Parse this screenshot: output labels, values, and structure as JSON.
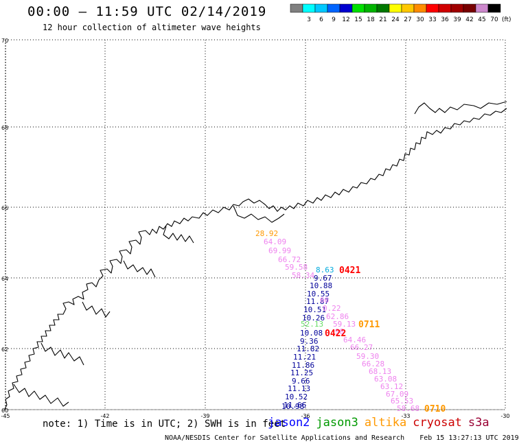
{
  "header": {
    "title": "00:00 – 11:59 UTC 02/14/2019",
    "subtitle": "12 hour collection of altimeter wave heights"
  },
  "legend": {
    "unit": "(ft)",
    "bins": [
      {
        "label": "",
        "color": "#808080"
      },
      {
        "label": "3",
        "color": "#00ffff"
      },
      {
        "label": "6",
        "color": "#00c8ff"
      },
      {
        "label": "9",
        "color": "#0064ff"
      },
      {
        "label": "12",
        "color": "#0000d0"
      },
      {
        "label": "15",
        "color": "#00e000"
      },
      {
        "label": "18",
        "color": "#00b400"
      },
      {
        "label": "21",
        "color": "#007800"
      },
      {
        "label": "24",
        "color": "#ffff00"
      },
      {
        "label": "27",
        "color": "#ffc800"
      },
      {
        "label": "30",
        "color": "#ff8c00"
      },
      {
        "label": "33",
        "color": "#ff0000"
      },
      {
        "label": "36",
        "color": "#d00000"
      },
      {
        "label": "39",
        "color": "#a00000"
      },
      {
        "label": "42",
        "color": "#780000"
      },
      {
        "label": "45",
        "color": "#cc88cc"
      },
      {
        "label": "70",
        "color": "#000000"
      }
    ]
  },
  "map": {
    "lat_ticks": [
      "70",
      "68",
      "66",
      "64",
      "62",
      "60"
    ],
    "lon_ticks": [
      "-45",
      "-42",
      "-39",
      "-36",
      "-33",
      "-30"
    ],
    "track_times": [
      {
        "text": "0421",
        "color": "#ff0000"
      },
      {
        "text": "0422",
        "color": "#ff0000"
      },
      {
        "text": "0711",
        "color": "#ff9900"
      },
      {
        "text": "0710",
        "color": "#ff9900"
      }
    ],
    "obs": [
      {
        "text": "28.92",
        "color": "#ff9900"
      },
      {
        "text": "64.09",
        "color": "#ee82ee"
      },
      {
        "text": "69.99",
        "color": "#ee82ee"
      },
      {
        "text": "66.72",
        "color": "#ee82ee"
      },
      {
        "text": "59.58",
        "color": "#ee82ee"
      },
      {
        "text": "58.34",
        "color": "#ee82ee"
      },
      {
        "text": "8.63",
        "color": "#00aadd"
      },
      {
        "text": "9.67",
        "color": "#000099"
      },
      {
        "text": "10.88",
        "color": "#000099"
      },
      {
        "text": "10.55",
        "color": "#000099"
      },
      {
        "text": "11.87",
        "color": "#000099"
      },
      {
        "text": "10.51",
        "color": "#000099"
      },
      {
        "text": "10.26",
        "color": "#000099"
      },
      {
        "text": "52.13",
        "color": "#66dd66"
      },
      {
        "text": "10.08",
        "color": "#000099"
      },
      {
        "text": "9.36",
        "color": "#000099"
      },
      {
        "text": "11.82",
        "color": "#000099"
      },
      {
        "text": "11.21",
        "color": "#000099"
      },
      {
        "text": "11.86",
        "color": "#000099"
      },
      {
        "text": "11.25",
        "color": "#000099"
      },
      {
        "text": "9.66",
        "color": "#000099"
      },
      {
        "text": "11.13",
        "color": "#000099"
      },
      {
        "text": "10.52",
        "color": "#000099"
      },
      {
        "text": "11.66",
        "color": "#000099"
      },
      {
        "text": "10.98",
        "color": "#000099"
      },
      {
        "text": "66",
        "color": "#ee82ee"
      },
      {
        "text": "0.22",
        "color": "#ee82ee"
      },
      {
        "text": "62.86",
        "color": "#ee82ee"
      },
      {
        "text": "59.13",
        "color": "#ee82ee"
      },
      {
        "text": "98",
        "color": "#ee82ee"
      },
      {
        "text": "64.46",
        "color": "#ee82ee"
      },
      {
        "text": "66.27",
        "color": "#ee82ee"
      },
      {
        "text": "59.30",
        "color": "#ee82ee"
      },
      {
        "text": "66.28",
        "color": "#ee82ee"
      },
      {
        "text": "68.13",
        "color": "#ee82ee"
      },
      {
        "text": "63.08",
        "color": "#ee82ee"
      },
      {
        "text": "63.12",
        "color": "#ee82ee"
      },
      {
        "text": "67.09",
        "color": "#ee82ee"
      },
      {
        "text": "65.53",
        "color": "#ee82ee"
      },
      {
        "text": "58.68",
        "color": "#ee82ee"
      }
    ]
  },
  "footer": {
    "note": "note: 1) Time is in UTC; 2) SWH is in feet",
    "satellites": [
      {
        "name": "jason2",
        "color": "#0000ff"
      },
      {
        "name": "jason3",
        "color": "#009900"
      },
      {
        "name": "altika",
        "color": "#ff9900"
      },
      {
        "name": "cryosat",
        "color": "#cc0000"
      },
      {
        "name": "s3a",
        "color": "#990033"
      }
    ],
    "credit": "NOAA/NESDIS Center for Satellite Applications and Research",
    "timestamp": "Feb 15 13:27:13 UTC 2019"
  }
}
